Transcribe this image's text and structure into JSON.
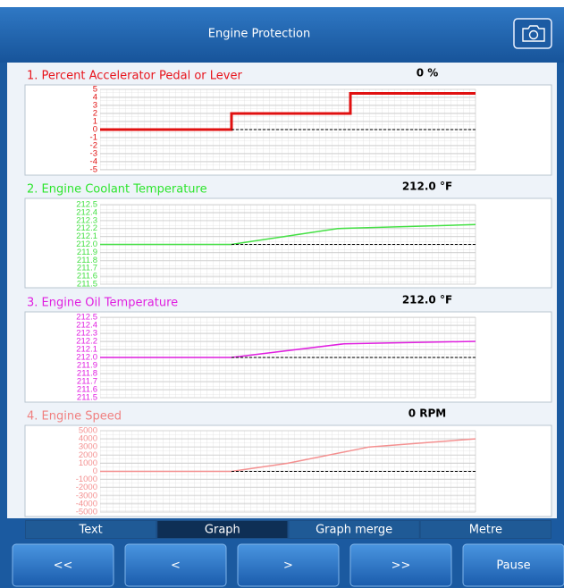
{
  "header": {
    "title": "Engine Protection"
  },
  "chart_data": [
    {
      "type": "line",
      "title": "1. Percent Accelerator Pedal or Lever",
      "readout": "0 %",
      "title_color": "#e8141c",
      "xlim": [
        0,
        30
      ],
      "ylim": [
        -5,
        5
      ],
      "yticks": [
        -5,
        -4,
        -3,
        -2,
        -1,
        0,
        1,
        2,
        3,
        4,
        5
      ],
      "grid": true,
      "series": [
        {
          "color": "#e01010",
          "x": [
            0,
            10.5,
            10.5,
            20,
            20,
            30
          ],
          "values": [
            0,
            0,
            2,
            2,
            4.5,
            4.5
          ]
        },
        {
          "color": "#000000",
          "dashed": true,
          "x": [
            10.5,
            30
          ],
          "values": [
            0,
            0
          ]
        }
      ]
    },
    {
      "type": "line",
      "title": "2. Engine Coolant Temperature",
      "readout": "212.0 °F",
      "title_color": "#2ee52e",
      "xlim": [
        0,
        30
      ],
      "ylim": [
        211.5,
        212.5
      ],
      "yticks": [
        211.5,
        211.6,
        211.7,
        211.8,
        211.9,
        {
          "value": 212,
          "label": "212.0"
        },
        212.1,
        212.2,
        212.3,
        212.4,
        212.5
      ],
      "grid": true,
      "series": [
        {
          "color": "#44e044",
          "x": [
            0,
            10.5,
            19,
            30
          ],
          "values": [
            212,
            212,
            212.2,
            212.25
          ]
        },
        {
          "color": "#000000",
          "dashed": true,
          "x": [
            10.5,
            30
          ],
          "values": [
            212,
            212
          ]
        }
      ]
    },
    {
      "type": "line",
      "title": "3. Engine Oil Temperature",
      "readout": "212.0 °F",
      "title_color": "#e020e0",
      "xlim": [
        0,
        30
      ],
      "ylim": [
        211.5,
        212.5
      ],
      "yticks": [
        211.5,
        211.6,
        211.7,
        211.8,
        211.9,
        {
          "value": 212,
          "label": "212.0"
        },
        212.1,
        212.2,
        212.3,
        212.4,
        212.5
      ],
      "grid": true,
      "series": [
        {
          "color": "#e020e0",
          "x": [
            0,
            10.5,
            19.5,
            30
          ],
          "values": [
            212,
            212,
            212.17,
            212.2
          ]
        },
        {
          "color": "#000000",
          "dashed": true,
          "x": [
            10.5,
            30
          ],
          "values": [
            212,
            212
          ]
        }
      ]
    },
    {
      "type": "line",
      "title": "4. Engine Speed",
      "readout": "0 RPM",
      "title_color": "#f08080",
      "xlim": [
        0,
        30
      ],
      "ylim": [
        -5000,
        5000
      ],
      "yticks": [
        -5000,
        -4000,
        -3000,
        -2000,
        -1000,
        0,
        1000,
        2000,
        3000,
        4000,
        5000
      ],
      "grid": true,
      "series": [
        {
          "color": "#f49090",
          "x": [
            0,
            10.5,
            15,
            21.5,
            30
          ],
          "values": [
            0,
            0,
            1000,
            3000,
            4000
          ]
        },
        {
          "color": "#000000",
          "dashed": true,
          "x": [
            10.5,
            30
          ],
          "values": [
            0,
            0
          ]
        }
      ]
    }
  ],
  "tabs": [
    {
      "label": "Text"
    },
    {
      "label": "Graph",
      "active": true
    },
    {
      "label": "Graph merge"
    },
    {
      "label": "Metre"
    }
  ],
  "buttons": [
    "<<",
    "<",
    ">",
    ">>",
    "Pause"
  ]
}
